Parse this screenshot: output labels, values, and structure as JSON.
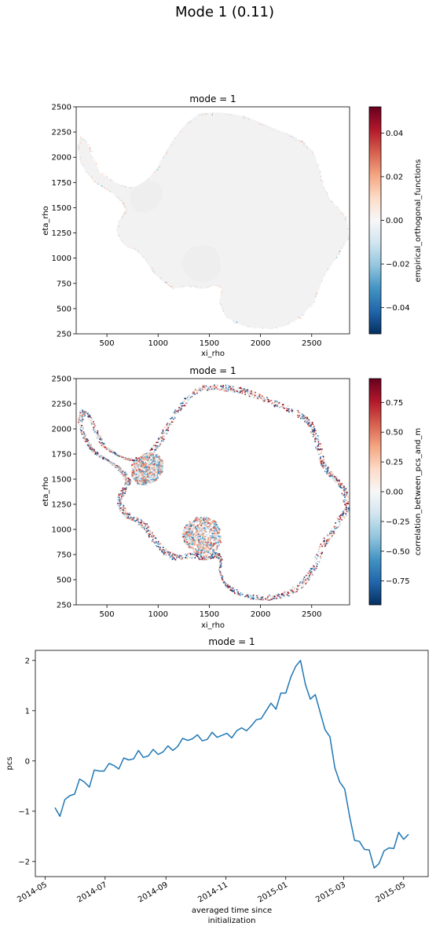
{
  "figure": {
    "suptitle": "Mode 1 (0.11)"
  },
  "colors": {
    "line": "#1f77b4",
    "ice": "#f2f2f2",
    "rdbu": [
      "#053061",
      "#2166ac",
      "#4393c3",
      "#92c5de",
      "#d1e5f0",
      "#f7f7f7",
      "#fddbc7",
      "#f4a582",
      "#d6604d",
      "#b2182b",
      "#67001f"
    ]
  },
  "chart_data": [
    {
      "type": "heatmap",
      "title": "mode = 1",
      "xlabel": "xi_rho",
      "ylabel": "eta_rho",
      "xlim": [
        200,
        2870
      ],
      "ylim": [
        250,
        2500
      ],
      "xticks": [
        "500",
        "1000",
        "1500",
        "2000",
        "2500"
      ],
      "yticks": [
        "250",
        "500",
        "750",
        "1000",
        "1250",
        "1500",
        "1750",
        "2000",
        "2250",
        "2500"
      ],
      "colorbar_label": "empirical_orthogonal_functions",
      "colorbar_range": [
        -0.052,
        0.052
      ],
      "colorbar_ticks": [
        "0.04",
        "0.02",
        "0.00",
        "−0.02",
        "−0.04"
      ],
      "colormap": "RdBu_r",
      "description": "Antarctica mask; values near 0 inland, small positive/negative values along the coast"
    },
    {
      "type": "heatmap",
      "title": "mode = 1",
      "xlabel": "xi_rho",
      "ylabel": "eta_rho",
      "xlim": [
        200,
        2870
      ],
      "ylim": [
        250,
        2500
      ],
      "xticks": [
        "500",
        "1000",
        "1500",
        "2000",
        "2500"
      ],
      "yticks": [
        "250",
        "500",
        "750",
        "1000",
        "1250",
        "1500",
        "1750",
        "2000",
        "2250",
        "2500"
      ],
      "colorbar_label": "correlation_between_pcs_and_m",
      "colorbar_range": [
        -0.95,
        0.95
      ],
      "colorbar_ticks": [
        "0.75",
        "0.50",
        "0.25",
        "0.00",
        "−0.25",
        "−0.50",
        "−0.75"
      ],
      "colormap": "RdBu_r",
      "description": "Correlation confined to coastal ring and ice shelves, mixed positive and negative"
    },
    {
      "type": "line",
      "title": "mode = 1",
      "xlabel_lines": [
        "averaged time since",
        "initialization"
      ],
      "ylabel": "pcs",
      "xlim": [
        "2014-04-21",
        "2015-05-26"
      ],
      "ylim": [
        -2.3,
        2.2
      ],
      "xticks": [
        "2014-05",
        "2014-07",
        "2014-09",
        "2014-11",
        "2015-01",
        "2015-03",
        "2015-05"
      ],
      "yticks": [
        "−2",
        "−1",
        "0",
        "1",
        "2"
      ],
      "series": [
        {
          "x": [
            "2014-05-11",
            "2014-05-16",
            "2014-05-21",
            "2014-05-26",
            "2014-05-31",
            "2014-06-05",
            "2014-06-10",
            "2014-06-15",
            "2014-06-20",
            "2014-06-25",
            "2014-06-30",
            "2014-07-05",
            "2014-07-10",
            "2014-07-15",
            "2014-07-20",
            "2014-07-25",
            "2014-07-30",
            "2014-08-04",
            "2014-08-09",
            "2014-08-14",
            "2014-08-19",
            "2014-08-24",
            "2014-08-29",
            "2014-09-03",
            "2014-09-08",
            "2014-09-13",
            "2014-09-18",
            "2014-09-23",
            "2014-09-28",
            "2014-10-03",
            "2014-10-08",
            "2014-10-13",
            "2014-10-18",
            "2014-10-23",
            "2014-10-28",
            "2014-11-02",
            "2014-11-07",
            "2014-11-12",
            "2014-11-17",
            "2014-11-22",
            "2014-11-27",
            "2014-12-02",
            "2014-12-07",
            "2014-12-12",
            "2014-12-17",
            "2014-12-22",
            "2014-12-27",
            "2015-01-01",
            "2015-01-06",
            "2015-01-11",
            "2015-01-16",
            "2015-01-21",
            "2015-01-26",
            "2015-01-31",
            "2015-02-05",
            "2015-02-10",
            "2015-02-15",
            "2015-02-20",
            "2015-02-25",
            "2015-03-02",
            "2015-03-07",
            "2015-03-12",
            "2015-03-17",
            "2015-03-22",
            "2015-03-27",
            "2015-04-01",
            "2015-04-06",
            "2015-04-11",
            "2015-04-16",
            "2015-04-21",
            "2015-04-26",
            "2015-05-01",
            "2015-05-06"
          ],
          "y": [
            -0.93,
            -1.1,
            -0.77,
            -0.69,
            -0.66,
            -0.36,
            -0.42,
            -0.52,
            -0.18,
            -0.2,
            -0.2,
            -0.05,
            -0.09,
            -0.16,
            0.06,
            0.02,
            0.04,
            0.21,
            0.07,
            0.1,
            0.23,
            0.13,
            0.18,
            0.3,
            0.21,
            0.29,
            0.45,
            0.41,
            0.44,
            0.52,
            0.4,
            0.43,
            0.57,
            0.47,
            0.51,
            0.55,
            0.46,
            0.6,
            0.66,
            0.6,
            0.7,
            0.82,
            0.84,
            1.0,
            1.15,
            1.03,
            1.35,
            1.35,
            1.66,
            1.88,
            2.0,
            1.52,
            1.23,
            1.32,
            0.97,
            0.62,
            0.48,
            -0.14,
            -0.42,
            -0.56,
            -1.1,
            -1.58,
            -1.6,
            -1.76,
            -1.77,
            -2.13,
            -2.04,
            -1.79,
            -1.73,
            -1.74,
            -1.42,
            -1.56,
            -1.46
          ]
        }
      ]
    }
  ]
}
